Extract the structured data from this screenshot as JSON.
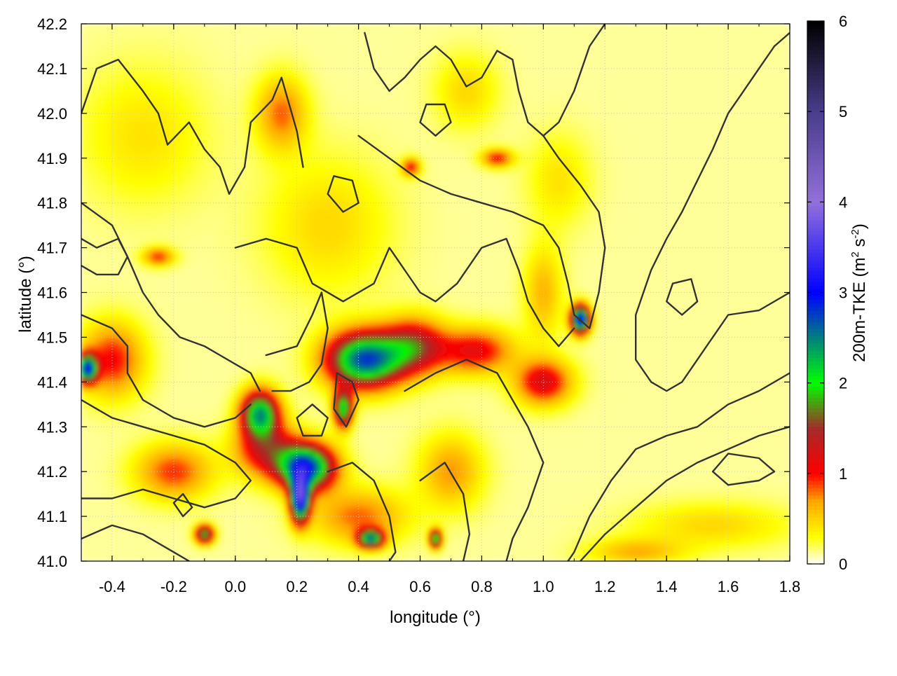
{
  "chart_data": {
    "type": "heatmap",
    "xlabel": "longitude (°)",
    "ylabel": "latitude (°)",
    "xlim": [
      -0.5,
      1.8
    ],
    "ylim": [
      41.0,
      42.2
    ],
    "x_ticks": [
      -0.4,
      -0.2,
      0.0,
      0.2,
      0.4,
      0.6,
      0.8,
      1.0,
      1.2,
      1.4,
      1.6,
      1.8
    ],
    "x_tick_labels": [
      "-0.4",
      "-0.2",
      "0.0",
      "0.2",
      "0.4",
      "0.6",
      "0.8",
      "1.0",
      "1.2",
      "1.4",
      "1.6",
      "1.8"
    ],
    "y_ticks": [
      41.0,
      41.1,
      41.2,
      41.3,
      41.4,
      41.5,
      41.6,
      41.7,
      41.8,
      41.9,
      42.0,
      42.1,
      42.2
    ],
    "y_tick_labels": [
      "41.0",
      "41.1",
      "41.2",
      "41.3",
      "41.4",
      "41.5",
      "41.6",
      "41.7",
      "41.8",
      "41.9",
      "42.0",
      "42.1",
      "42.2"
    ],
    "grid": true,
    "colorbar": {
      "label_main": "200m-TKE (m",
      "label_sup1": "2",
      "label_mid": " s",
      "label_sup2": "-2",
      "label_end": ")",
      "range": [
        0,
        6
      ],
      "ticks": [
        0,
        1,
        2,
        3,
        4,
        5,
        6
      ],
      "tick_labels": [
        "0",
        "1",
        "2",
        "3",
        "4",
        "5",
        "6"
      ],
      "stops": [
        {
          "value": 0.0,
          "color": "#ffffff"
        },
        {
          "value": 0.3,
          "color": "#ffff00"
        },
        {
          "value": 0.7,
          "color": "#ffa500"
        },
        {
          "value": 1.0,
          "color": "#ff0000"
        },
        {
          "value": 1.5,
          "color": "#a52a2a"
        },
        {
          "value": 2.0,
          "color": "#00ff00"
        },
        {
          "value": 3.0,
          "color": "#0000ff"
        },
        {
          "value": 4.0,
          "color": "#9370db"
        },
        {
          "value": 5.0,
          "color": "#483d8b"
        },
        {
          "value": 6.0,
          "color": "#000000"
        }
      ]
    },
    "hotspots": [
      {
        "lon": 0.42,
        "lat": 41.45,
        "sx": 0.12,
        "sy": 0.06,
        "peak": 2.6
      },
      {
        "lon": 0.23,
        "lat": 41.21,
        "sx": 0.09,
        "sy": 0.05,
        "peak": 2.7
      },
      {
        "lon": 0.21,
        "lat": 41.14,
        "sx": 0.03,
        "sy": 0.05,
        "peak": 3.2
      },
      {
        "lon": 0.08,
        "lat": 41.33,
        "sx": 0.06,
        "sy": 0.05,
        "peak": 2.2
      },
      {
        "lon": 0.35,
        "lat": 41.34,
        "sx": 0.03,
        "sy": 0.04,
        "peak": 2.0
      },
      {
        "lon": 0.58,
        "lat": 41.48,
        "sx": 0.1,
        "sy": 0.06,
        "peak": 1.3
      },
      {
        "lon": 0.78,
        "lat": 41.47,
        "sx": 0.12,
        "sy": 0.05,
        "peak": 1.0
      },
      {
        "lon": 1.0,
        "lat": 41.4,
        "sx": 0.09,
        "sy": 0.05,
        "peak": 1.1
      },
      {
        "lon": 1.12,
        "lat": 41.54,
        "sx": 0.03,
        "sy": 0.03,
        "peak": 3.0
      },
      {
        "lon": -0.48,
        "lat": 41.43,
        "sx": 0.03,
        "sy": 0.03,
        "peak": 2.5
      },
      {
        "lon": -0.1,
        "lat": 41.06,
        "sx": 0.03,
        "sy": 0.02,
        "peak": 1.8
      },
      {
        "lon": 0.44,
        "lat": 41.05,
        "sx": 0.04,
        "sy": 0.02,
        "peak": 2.2
      },
      {
        "lon": 0.65,
        "lat": 41.05,
        "sx": 0.02,
        "sy": 0.02,
        "peak": 2.0
      },
      {
        "lon": -0.4,
        "lat": 41.45,
        "sx": 0.1,
        "sy": 0.08,
        "peak": 0.9
      },
      {
        "lon": -0.2,
        "lat": 41.2,
        "sx": 0.12,
        "sy": 0.06,
        "peak": 0.8
      },
      {
        "lon": 0.1,
        "lat": 41.25,
        "sx": 0.1,
        "sy": 0.06,
        "peak": 1.1
      },
      {
        "lon": 0.15,
        "lat": 42.0,
        "sx": 0.08,
        "sy": 0.08,
        "peak": 0.7
      },
      {
        "lon": 0.85,
        "lat": 41.9,
        "sx": 0.05,
        "sy": 0.02,
        "peak": 0.9
      },
      {
        "lon": 0.57,
        "lat": 41.88,
        "sx": 0.03,
        "sy": 0.02,
        "peak": 0.9
      },
      {
        "lon": -0.25,
        "lat": 41.68,
        "sx": 0.05,
        "sy": 0.02,
        "peak": 0.8
      },
      {
        "lon": 0.4,
        "lat": 41.1,
        "sx": 0.15,
        "sy": 0.06,
        "peak": 0.7
      },
      {
        "lon": 0.7,
        "lat": 41.2,
        "sx": 0.1,
        "sy": 0.08,
        "peak": 0.6
      },
      {
        "lon": 1.0,
        "lat": 41.6,
        "sx": 0.06,
        "sy": 0.1,
        "peak": 0.5
      },
      {
        "lon": 0.3,
        "lat": 41.75,
        "sx": 0.2,
        "sy": 0.15,
        "peak": 0.35
      },
      {
        "lon": -0.3,
        "lat": 41.95,
        "sx": 0.2,
        "sy": 0.15,
        "peak": 0.3
      },
      {
        "lon": 1.55,
        "lat": 41.08,
        "sx": 0.25,
        "sy": 0.05,
        "peak": 0.35
      },
      {
        "lon": 1.3,
        "lat": 41.02,
        "sx": 0.15,
        "sy": 0.03,
        "peak": 0.5
      },
      {
        "lon": 1.05,
        "lat": 41.85,
        "sx": 0.1,
        "sy": 0.1,
        "peak": 0.3
      },
      {
        "lon": 0.75,
        "lat": 42.05,
        "sx": 0.1,
        "sy": 0.08,
        "peak": 0.35
      }
    ],
    "contours": [
      [
        [
          -0.5,
          42.0
        ],
        [
          -0.45,
          42.1
        ],
        [
          -0.38,
          42.12
        ],
        [
          -0.3,
          42.05
        ],
        [
          -0.25,
          42.0
        ],
        [
          -0.22,
          41.93
        ],
        [
          -0.15,
          41.98
        ],
        [
          -0.1,
          41.92
        ],
        [
          -0.05,
          41.88
        ],
        [
          -0.02,
          41.82
        ],
        [
          0.03,
          41.88
        ],
        [
          0.05,
          41.98
        ],
        [
          0.12,
          42.03
        ],
        [
          0.15,
          42.08
        ],
        [
          0.2,
          41.96
        ],
        [
          0.22,
          41.88
        ]
      ],
      [
        [
          -0.5,
          41.8
        ],
        [
          -0.4,
          41.75
        ],
        [
          -0.35,
          41.68
        ],
        [
          -0.3,
          41.6
        ],
        [
          -0.25,
          41.55
        ],
        [
          -0.18,
          41.5
        ],
        [
          -0.1,
          41.48
        ],
        [
          -0.05,
          41.46
        ],
        [
          0.0,
          41.44
        ],
        [
          0.05,
          41.42
        ],
        [
          0.08,
          41.38
        ]
      ],
      [
        [
          -0.5,
          41.72
        ],
        [
          -0.45,
          41.7
        ],
        [
          -0.38,
          41.72
        ],
        [
          -0.35,
          41.68
        ],
        [
          -0.38,
          41.64
        ],
        [
          -0.45,
          41.64
        ],
        [
          -0.5,
          41.66
        ]
      ],
      [
        [
          -0.5,
          41.55
        ],
        [
          -0.4,
          41.52
        ],
        [
          -0.35,
          41.48
        ],
        [
          -0.35,
          41.42
        ],
        [
          -0.3,
          41.36
        ],
        [
          -0.2,
          41.32
        ],
        [
          -0.1,
          41.3
        ],
        [
          0.0,
          41.32
        ],
        [
          0.05,
          41.35
        ]
      ],
      [
        [
          -0.5,
          41.36
        ],
        [
          -0.4,
          41.32
        ],
        [
          -0.3,
          41.3
        ],
        [
          -0.2,
          41.28
        ],
        [
          -0.1,
          41.26
        ],
        [
          0.0,
          41.22
        ],
        [
          0.05,
          41.18
        ],
        [
          0.0,
          41.14
        ],
        [
          -0.1,
          41.12
        ],
        [
          -0.2,
          41.14
        ],
        [
          -0.3,
          41.16
        ],
        [
          -0.4,
          41.14
        ],
        [
          -0.5,
          41.14
        ]
      ],
      [
        [
          -0.5,
          41.05
        ],
        [
          -0.4,
          41.08
        ],
        [
          -0.3,
          41.06
        ],
        [
          -0.2,
          41.02
        ],
        [
          -0.15,
          41.0
        ]
      ],
      [
        [
          -0.2,
          41.13
        ],
        [
          -0.17,
          41.1
        ],
        [
          -0.14,
          41.12
        ],
        [
          -0.17,
          41.15
        ],
        [
          -0.2,
          41.13
        ]
      ],
      [
        [
          0.1,
          41.46
        ],
        [
          0.2,
          41.48
        ],
        [
          0.25,
          41.55
        ],
        [
          0.28,
          41.6
        ],
        [
          0.3,
          41.52
        ],
        [
          0.28,
          41.44
        ],
        [
          0.24,
          41.4
        ],
        [
          0.18,
          41.38
        ],
        [
          0.12,
          41.38
        ]
      ],
      [
        [
          0.2,
          41.32
        ],
        [
          0.25,
          41.35
        ],
        [
          0.3,
          41.32
        ],
        [
          0.28,
          41.28
        ],
        [
          0.22,
          41.28
        ],
        [
          0.2,
          41.32
        ]
      ],
      [
        [
          0.33,
          41.42
        ],
        [
          0.38,
          41.4
        ],
        [
          0.4,
          41.36
        ],
        [
          0.36,
          41.3
        ],
        [
          0.32,
          41.34
        ],
        [
          0.33,
          41.42
        ]
      ],
      [
        [
          0.55,
          41.38
        ],
        [
          0.65,
          41.42
        ],
        [
          0.75,
          41.45
        ],
        [
          0.85,
          41.42
        ],
        [
          0.9,
          41.36
        ],
        [
          0.95,
          41.3
        ],
        [
          1.0,
          41.22
        ],
        [
          0.95,
          41.12
        ],
        [
          0.9,
          41.05
        ],
        [
          0.88,
          41.0
        ]
      ],
      [
        [
          0.3,
          41.2
        ],
        [
          0.38,
          41.22
        ],
        [
          0.45,
          41.18
        ],
        [
          0.5,
          41.1
        ],
        [
          0.52,
          41.02
        ],
        [
          0.5,
          41.0
        ]
      ],
      [
        [
          0.6,
          41.18
        ],
        [
          0.68,
          41.22
        ],
        [
          0.74,
          41.15
        ],
        [
          0.76,
          41.06
        ],
        [
          0.74,
          41.0
        ]
      ],
      [
        [
          1.8,
          41.42
        ],
        [
          1.7,
          41.38
        ],
        [
          1.6,
          41.35
        ],
        [
          1.5,
          41.3
        ],
        [
          1.4,
          41.28
        ],
        [
          1.3,
          41.25
        ],
        [
          1.22,
          41.18
        ],
        [
          1.15,
          41.1
        ],
        [
          1.1,
          41.02
        ],
        [
          1.08,
          41.0
        ]
      ],
      [
        [
          1.8,
          41.3
        ],
        [
          1.7,
          41.28
        ],
        [
          1.6,
          41.25
        ],
        [
          1.5,
          41.22
        ],
        [
          1.4,
          41.18
        ],
        [
          1.3,
          41.12
        ],
        [
          1.2,
          41.06
        ],
        [
          1.12,
          41.0
        ]
      ],
      [
        [
          1.75,
          41.2
        ],
        [
          1.7,
          41.18
        ],
        [
          1.6,
          41.17
        ],
        [
          1.55,
          41.2
        ],
        [
          1.6,
          41.24
        ],
        [
          1.7,
          41.23
        ],
        [
          1.75,
          41.2
        ]
      ],
      [
        [
          1.8,
          41.6
        ],
        [
          1.7,
          41.56
        ],
        [
          1.6,
          41.55
        ],
        [
          1.55,
          41.5
        ],
        [
          1.5,
          41.45
        ],
        [
          1.45,
          41.4
        ],
        [
          1.4,
          41.38
        ],
        [
          1.35,
          41.4
        ],
        [
          1.3,
          41.45
        ],
        [
          1.3,
          41.55
        ],
        [
          1.35,
          41.65
        ],
        [
          1.4,
          41.72
        ],
        [
          1.45,
          41.78
        ],
        [
          1.5,
          41.85
        ],
        [
          1.55,
          41.92
        ],
        [
          1.6,
          42.0
        ],
        [
          1.65,
          42.05
        ],
        [
          1.7,
          42.1
        ],
        [
          1.75,
          42.15
        ],
        [
          1.8,
          42.18
        ]
      ],
      [
        [
          1.5,
          41.58
        ],
        [
          1.45,
          41.55
        ],
        [
          1.4,
          41.58
        ],
        [
          1.42,
          41.62
        ],
        [
          1.48,
          41.63
        ],
        [
          1.5,
          41.58
        ]
      ],
      [
        [
          0.42,
          42.18
        ],
        [
          0.45,
          42.1
        ],
        [
          0.5,
          42.05
        ],
        [
          0.55,
          42.08
        ],
        [
          0.6,
          42.12
        ],
        [
          0.65,
          42.15
        ],
        [
          0.7,
          42.12
        ],
        [
          0.75,
          42.06
        ],
        [
          0.8,
          42.08
        ],
        [
          0.85,
          42.14
        ],
        [
          0.9,
          42.12
        ],
        [
          0.92,
          42.05
        ],
        [
          0.95,
          41.98
        ],
        [
          1.0,
          41.95
        ],
        [
          1.05,
          41.98
        ],
        [
          1.1,
          42.05
        ],
        [
          1.15,
          42.15
        ],
        [
          1.2,
          42.2
        ]
      ],
      [
        [
          0.4,
          41.95
        ],
        [
          0.5,
          41.9
        ],
        [
          0.6,
          41.85
        ],
        [
          0.7,
          41.82
        ],
        [
          0.8,
          41.8
        ],
        [
          0.9,
          41.78
        ],
        [
          1.0,
          41.75
        ],
        [
          1.05,
          41.7
        ],
        [
          1.08,
          41.62
        ],
        [
          1.1,
          41.55
        ],
        [
          1.15,
          41.52
        ],
        [
          1.18,
          41.6
        ],
        [
          1.2,
          41.7
        ],
        [
          1.18,
          41.78
        ],
        [
          1.12,
          41.84
        ],
        [
          1.05,
          41.9
        ],
        [
          1.0,
          41.95
        ]
      ],
      [
        [
          0.0,
          41.7
        ],
        [
          0.1,
          41.72
        ],
        [
          0.2,
          41.7
        ],
        [
          0.25,
          41.62
        ],
        [
          0.35,
          41.58
        ],
        [
          0.45,
          41.62
        ],
        [
          0.5,
          41.7
        ],
        [
          0.55,
          41.65
        ],
        [
          0.6,
          41.6
        ],
        [
          0.65,
          41.58
        ],
        [
          0.72,
          41.62
        ],
        [
          0.8,
          41.7
        ],
        [
          0.88,
          41.72
        ],
        [
          0.92,
          41.65
        ],
        [
          0.95,
          41.58
        ],
        [
          1.0,
          41.52
        ],
        [
          1.05,
          41.48
        ],
        [
          1.1,
          41.52
        ]
      ],
      [
        [
          0.3,
          41.82
        ],
        [
          0.35,
          41.78
        ],
        [
          0.4,
          41.8
        ],
        [
          0.38,
          41.85
        ],
        [
          0.32,
          41.86
        ],
        [
          0.3,
          41.82
        ]
      ],
      [
        [
          0.6,
          41.98
        ],
        [
          0.65,
          41.95
        ],
        [
          0.7,
          41.98
        ],
        [
          0.68,
          42.02
        ],
        [
          0.62,
          42.02
        ],
        [
          0.6,
          41.98
        ]
      ]
    ]
  }
}
